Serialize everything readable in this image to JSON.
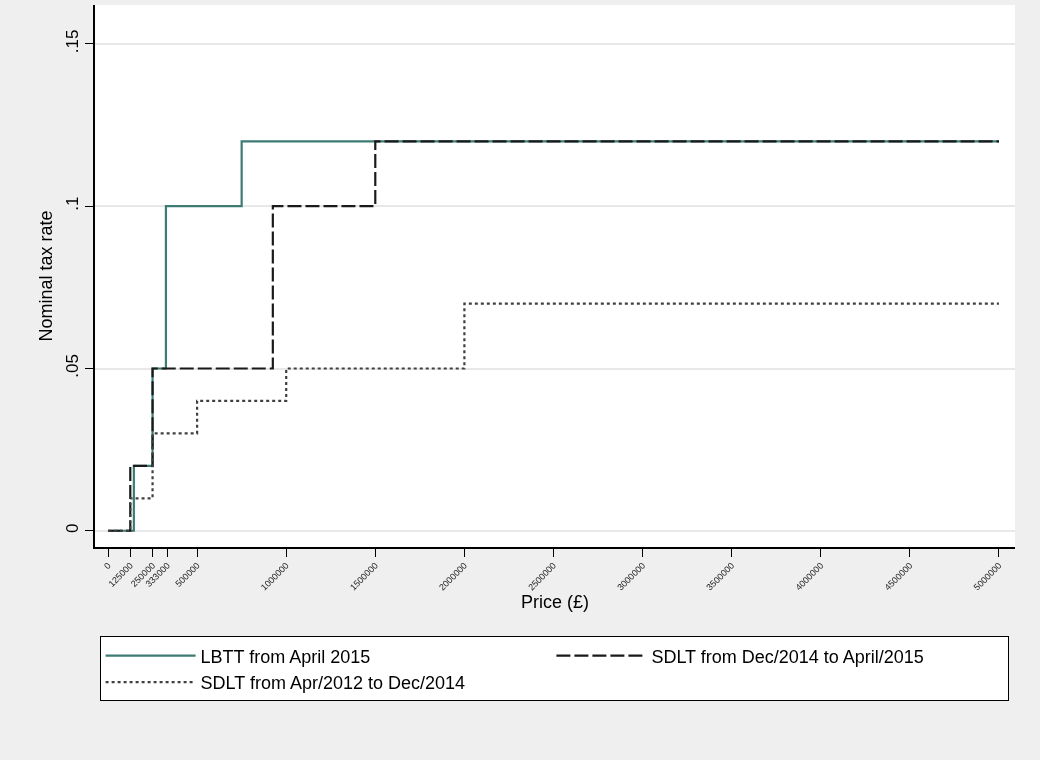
{
  "chart_data": {
    "type": "step",
    "xlabel": "Price (£)",
    "ylabel": "Nominal tax rate",
    "series": [
      {
        "name": "LBTT from April 2015",
        "color": "#3d7b73",
        "line_style": "solid",
        "x": [
          0,
          145000,
          250000,
          325000,
          750000,
          5000000
        ],
        "values": [
          0,
          0.02,
          0.05,
          0.1,
          0.12,
          0.12
        ]
      },
      {
        "name": "SDLT from Dec/2014 to April/2015",
        "color": "#1a1a1a",
        "line_style": "dashed",
        "x": [
          0,
          125000,
          250000,
          925000,
          1500000,
          5000000
        ],
        "values": [
          0,
          0.02,
          0.05,
          0.1,
          0.12,
          0.12
        ]
      },
      {
        "name": "SDLT from Apr/2012 to Dec/2014",
        "color": "#404040",
        "line_style": "dotted",
        "x": [
          0,
          125000,
          250000,
          500000,
          1000000,
          2000000,
          5000000
        ],
        "values": [
          0,
          0.01,
          0.03,
          0.04,
          0.05,
          0.07,
          0.07
        ]
      }
    ],
    "xlim": [
      -73000,
      5090000
    ],
    "ylim": [
      -0.005,
      0.162
    ],
    "xticks": [
      0,
      125000,
      250000,
      333000,
      500000,
      1000000,
      1500000,
      2000000,
      2500000,
      3000000,
      3500000,
      4000000,
      4500000,
      5000000
    ],
    "yticks": [
      0,
      {
        "value": 0.05,
        "label": ".05"
      },
      {
        "value": 0.1,
        "label": ".1"
      },
      {
        "value": 0.15,
        "label": ".15"
      }
    ],
    "grid": "y",
    "legend": "bottom"
  }
}
